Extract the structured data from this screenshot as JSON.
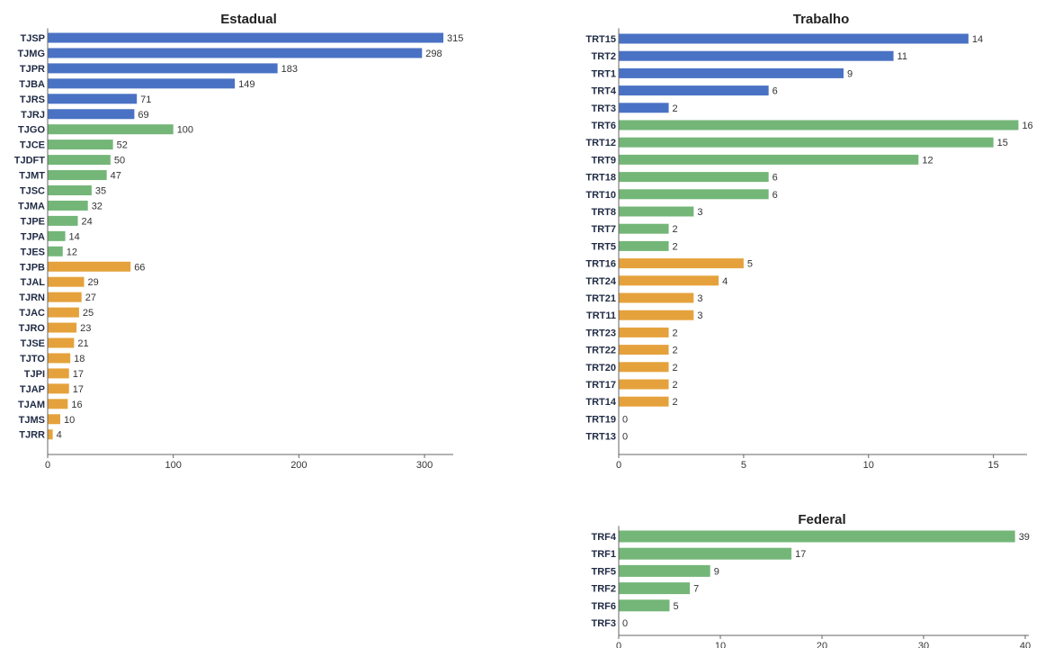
{
  "colors": {
    "blue": "#4a72c4",
    "green": "#74b678",
    "orange": "#e5a23c"
  },
  "chart_data": [
    {
      "type": "bar",
      "orientation": "horizontal",
      "title": "Estadual",
      "categories": [
        "TJSP",
        "TJMG",
        "TJPR",
        "TJBA",
        "TJRS",
        "TJRJ",
        "TJGO",
        "TJCE",
        "TJDFT",
        "TJMT",
        "TJSC",
        "TJMA",
        "TJPE",
        "TJPA",
        "TJES",
        "TJPB",
        "TJAL",
        "TJRN",
        "TJAC",
        "TJRO",
        "TJSE",
        "TJTO",
        "TJPI",
        "TJAP",
        "TJAM",
        "TJMS",
        "TJRR"
      ],
      "values": [
        315,
        298,
        183,
        149,
        71,
        69,
        100,
        52,
        50,
        47,
        35,
        32,
        24,
        14,
        12,
        66,
        29,
        27,
        25,
        23,
        21,
        18,
        17,
        17,
        16,
        10,
        4
      ],
      "bar_colors": [
        "blue",
        "blue",
        "blue",
        "blue",
        "blue",
        "blue",
        "green",
        "green",
        "green",
        "green",
        "green",
        "green",
        "green",
        "green",
        "green",
        "orange",
        "orange",
        "orange",
        "orange",
        "orange",
        "orange",
        "orange",
        "orange",
        "orange",
        "orange",
        "orange",
        "orange"
      ],
      "xlim": [
        0,
        320
      ],
      "xticks": [
        0,
        100,
        200,
        300
      ],
      "xlabel": "",
      "ylabel": ""
    },
    {
      "type": "bar",
      "orientation": "horizontal",
      "title": "Trabalho",
      "categories": [
        "TRT15",
        "TRT2",
        "TRT1",
        "TRT4",
        "TRT3",
        "TRT6",
        "TRT12",
        "TRT9",
        "TRT18",
        "TRT10",
        "TRT8",
        "TRT7",
        "TRT5",
        "TRT16",
        "TRT24",
        "TRT21",
        "TRT11",
        "TRT23",
        "TRT22",
        "TRT20",
        "TRT17",
        "TRT14",
        "TRT19",
        "TRT13"
      ],
      "values": [
        14,
        11,
        9,
        6,
        2,
        16,
        15,
        12,
        6,
        6,
        3,
        2,
        2,
        5,
        4,
        3,
        3,
        2,
        2,
        2,
        2,
        2,
        0,
        0
      ],
      "bar_colors": [
        "blue",
        "blue",
        "blue",
        "blue",
        "blue",
        "green",
        "green",
        "green",
        "green",
        "green",
        "green",
        "green",
        "green",
        "orange",
        "orange",
        "orange",
        "orange",
        "orange",
        "orange",
        "orange",
        "orange",
        "orange",
        "orange",
        "orange"
      ],
      "xlim": [
        0,
        16.2
      ],
      "xticks": [
        0,
        5,
        10,
        15
      ],
      "xlabel": "",
      "ylabel": ""
    },
    {
      "type": "bar",
      "orientation": "horizontal",
      "title": "Federal",
      "categories": [
        "TRF4",
        "TRF1",
        "TRF5",
        "TRF2",
        "TRF6",
        "TRF3"
      ],
      "values": [
        39,
        17,
        9,
        7,
        5,
        0
      ],
      "bar_colors": [
        "green",
        "green",
        "green",
        "green",
        "green",
        "green"
      ],
      "xlim": [
        0,
        40
      ],
      "xticks": [
        0,
        10,
        20,
        30,
        40
      ],
      "xlabel": "",
      "ylabel": ""
    }
  ]
}
